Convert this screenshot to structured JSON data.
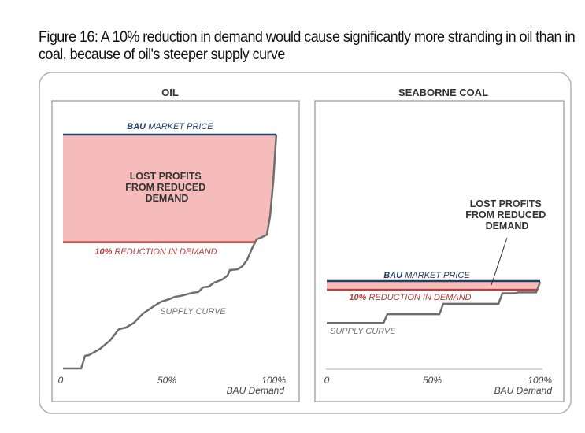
{
  "title": "Figure 16: A 10% reduction in demand would cause significantly more stranding in oil than in coal, because of oil's steeper supply curve",
  "colors": {
    "bau": "#1f3f66",
    "reduction": "#b5403d",
    "lost": "#f6bcbc",
    "supply": "#6e6e6e",
    "frame": "#b0b0b0"
  },
  "chart_data": [
    {
      "type": "line",
      "title": "OIL",
      "xlabel": "BAU Demand",
      "x_ticks": [
        "0",
        "50%",
        "100%"
      ],
      "xlim": [
        0,
        100
      ],
      "ylim": [
        0,
        100
      ],
      "bau_price_bold": "BAU",
      "bau_price_label": "MARKET PRICE",
      "bau_price": 100,
      "reduction_bold": "10%",
      "reduction_label": "REDUCTION IN DEMAND",
      "reduction_price": 54,
      "area_label": [
        "LOST PROFITS",
        "FROM REDUCED",
        "DEMAND"
      ],
      "supply_label": "SUPPLY CURVE",
      "supply_curve": [
        [
          0,
          0
        ],
        [
          8.5,
          0
        ],
        [
          10.3,
          5.4
        ],
        [
          12.1,
          5.7
        ],
        [
          17.3,
          8.4
        ],
        [
          22.1,
          12.1
        ],
        [
          26.1,
          16.8
        ],
        [
          29.4,
          17.5
        ],
        [
          33.1,
          19.5
        ],
        [
          34.9,
          21.2
        ],
        [
          37.5,
          23.6
        ],
        [
          41.9,
          26.3
        ],
        [
          44.1,
          27.6
        ],
        [
          46,
          28.6
        ],
        [
          49.6,
          29.6
        ],
        [
          52.2,
          30.6
        ],
        [
          54.8,
          31
        ],
        [
          57.4,
          31.6
        ],
        [
          60.3,
          32.3
        ],
        [
          63.2,
          32.7
        ],
        [
          65.4,
          34.7
        ],
        [
          68,
          35
        ],
        [
          70.6,
          36.7
        ],
        [
          74.3,
          38
        ],
        [
          76.8,
          39.7
        ],
        [
          77.9,
          42.1
        ],
        [
          81.6,
          42.4
        ],
        [
          83.8,
          43.8
        ],
        [
          86,
          46.5
        ],
        [
          88.2,
          51.2
        ],
        [
          90.4,
          55.2
        ],
        [
          92.3,
          55.9
        ],
        [
          95.2,
          57.2
        ],
        [
          96.7,
          65
        ],
        [
          98.2,
          80.1
        ],
        [
          98.9,
          90.2
        ],
        [
          99.6,
          100
        ]
      ]
    },
    {
      "type": "line",
      "title": "SEABORNE COAL",
      "xlabel": "BAU Demand",
      "x_ticks": [
        "0",
        "50%",
        "100%"
      ],
      "xlim": [
        0,
        100
      ],
      "ylim": [
        0,
        100
      ],
      "bau_price_bold": "BAU",
      "bau_price_label": "MARKET PRICE",
      "bau_price": 100,
      "reduction_bold": "10%",
      "reduction_label": "REDUCTION IN DEMAND",
      "reduction_price": 90,
      "area_label": [
        "LOST PROFITS",
        "FROM REDUCED",
        "DEMAND"
      ],
      "supply_label": "SUPPLY CURVE",
      "supply_curve": [
        [
          0,
          52
        ],
        [
          26.4,
          52
        ],
        [
          28.2,
          62
        ],
        [
          52.4,
          62
        ],
        [
          54.2,
          74
        ],
        [
          79.9,
          74
        ],
        [
          81.7,
          86
        ],
        [
          87.5,
          86
        ],
        [
          89,
          87
        ],
        [
          97.4,
          87
        ],
        [
          99.3,
          99
        ]
      ]
    }
  ]
}
